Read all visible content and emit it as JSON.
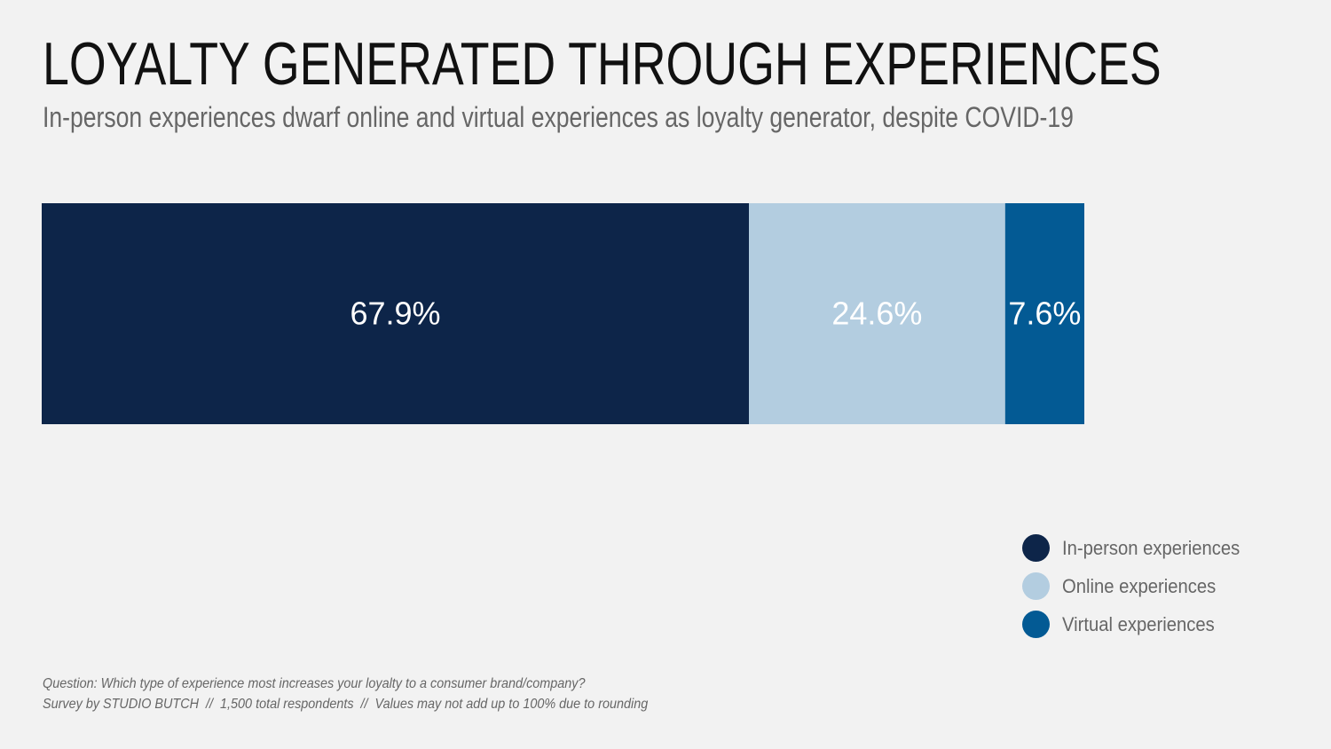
{
  "chart_data": {
    "type": "bar",
    "orientation": "horizontal-stacked",
    "title": "LOYALTY GENERATED THROUGH EXPERIENCES",
    "subtitle": "In-person experiences dwarf online and virtual experiences as loyalty generator, despite COVID-19",
    "series": [
      {
        "name": "In-person experiences",
        "value": 67.9,
        "label": "67.9%",
        "color": "#0d2549"
      },
      {
        "name": "Online experiences",
        "value": 24.6,
        "label": "24.6%",
        "color": "#b3cde0"
      },
      {
        "name": "Virtual experiences",
        "value": 7.6,
        "label": "7.6%",
        "color": "#035a94"
      }
    ],
    "legend_placement": "bottom-right",
    "grid": false
  },
  "footnote": {
    "line1": "Question: Which type of experience most increases your loyalty to a consumer brand/company?",
    "line2": "Survey by STUDIO BUTCH  //  1,500 total respondents  //  Values may not add up to 100% due to rounding"
  }
}
